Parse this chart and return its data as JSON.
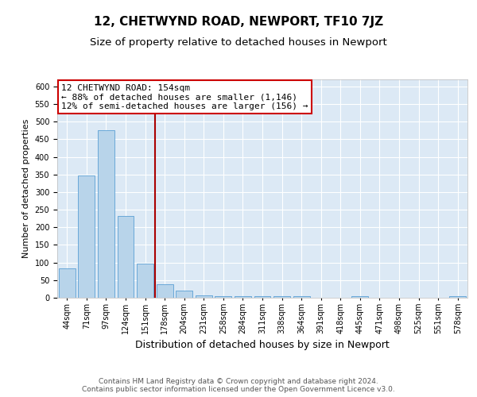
{
  "title": "12, CHETWYND ROAD, NEWPORT, TF10 7JZ",
  "subtitle": "Size of property relative to detached houses in Newport",
  "xlabel": "Distribution of detached houses by size in Newport",
  "ylabel": "Number of detached properties",
  "categories": [
    "44sqm",
    "71sqm",
    "97sqm",
    "124sqm",
    "151sqm",
    "178sqm",
    "204sqm",
    "231sqm",
    "258sqm",
    "284sqm",
    "311sqm",
    "338sqm",
    "364sqm",
    "391sqm",
    "418sqm",
    "445sqm",
    "471sqm",
    "498sqm",
    "525sqm",
    "551sqm",
    "578sqm"
  ],
  "values": [
    83,
    347,
    476,
    233,
    97,
    38,
    20,
    7,
    5,
    5,
    5,
    5,
    5,
    0,
    0,
    5,
    0,
    0,
    0,
    0,
    5
  ],
  "bar_color": "#b8d4ea",
  "bar_edge_color": "#5a9fd4",
  "red_line_x": 4.5,
  "red_line_color": "#aa0000",
  "annotation_line1": "12 CHETWYND ROAD: 154sqm",
  "annotation_line2": "← 88% of detached houses are smaller (1,146)",
  "annotation_line3": "12% of semi-detached houses are larger (156) →",
  "annotation_box_facecolor": "#ffffff",
  "annotation_box_edgecolor": "#cc0000",
  "ylim": [
    0,
    620
  ],
  "yticks": [
    0,
    50,
    100,
    150,
    200,
    250,
    300,
    350,
    400,
    450,
    500,
    550,
    600
  ],
  "footer": "Contains HM Land Registry data © Crown copyright and database right 2024.\nContains public sector information licensed under the Open Government Licence v3.0.",
  "background_color": "#ffffff",
  "plot_bg_color": "#dce9f5",
  "grid_color": "#ffffff",
  "title_fontsize": 11,
  "subtitle_fontsize": 9.5,
  "xlabel_fontsize": 9,
  "ylabel_fontsize": 8,
  "tick_fontsize": 7,
  "annotation_fontsize": 8,
  "footer_fontsize": 6.5
}
